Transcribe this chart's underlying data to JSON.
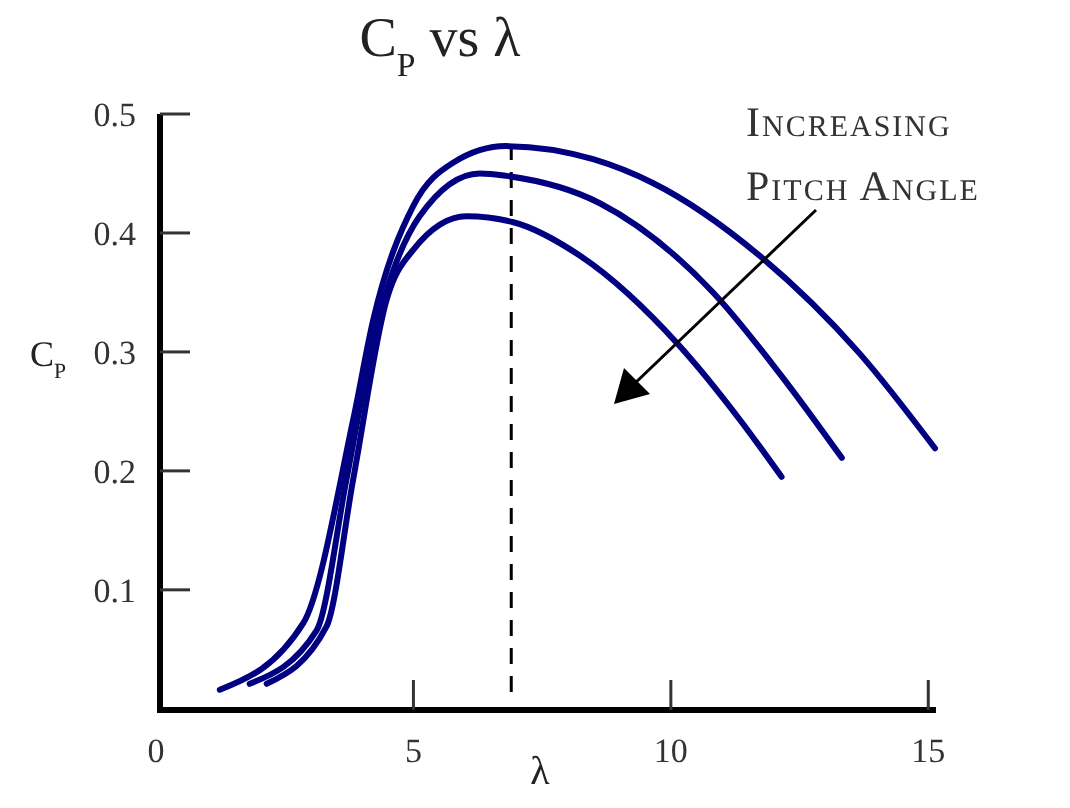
{
  "chart_data": {
    "type": "line",
    "title": "C$_{P}$ vs λ",
    "xlabel": "λ",
    "ylabel": "C$_{P}$",
    "annotations": [
      "Increasing Pitch Angle"
    ],
    "xlim": [
      0,
      15.15
    ],
    "ylim": [
      0,
      0.5
    ],
    "xticks": [
      0,
      5,
      10,
      15
    ],
    "yticks": [
      0.1,
      0.2,
      0.3,
      0.4,
      0.5
    ],
    "grid": false,
    "line_style": "solid",
    "ref_lines": [
      {
        "axis": "x",
        "value": 6.9,
        "label": null,
        "color": "#000000",
        "line_style": "dashed"
      }
    ],
    "series": [
      {
        "color": "#000080",
        "x": [
          1.24,
          2.86,
          3.83,
          4.22,
          5.0,
          5.77,
          6.8,
          8.49,
          9.65,
          11.72,
          13.66,
          15.13
        ],
        "values": [
          0.016,
          0.072,
          0.243,
          0.327,
          0.423,
          0.459,
          0.473,
          0.462,
          0.442,
          0.381,
          0.299,
          0.219
        ]
      },
      {
        "color": "#000080",
        "x": [
          1.82,
          3.12,
          3.7,
          4.22,
          5.12,
          6.29,
          6.8,
          8.62,
          10.82,
          12.11,
          13.32
        ],
        "values": [
          0.021,
          0.066,
          0.193,
          0.31,
          0.414,
          0.45,
          0.448,
          0.425,
          0.35,
          0.282,
          0.211
        ]
      },
      {
        "color": "#000080",
        "x": [
          2.15,
          3.31,
          3.83,
          4.48,
          5.0,
          6.03,
          6.94,
          8.23,
          10.17,
          11.34,
          12.15
        ],
        "values": [
          0.021,
          0.069,
          0.193,
          0.344,
          0.386,
          0.414,
          0.409,
          0.381,
          0.305,
          0.243,
          0.195
        ]
      }
    ]
  }
}
